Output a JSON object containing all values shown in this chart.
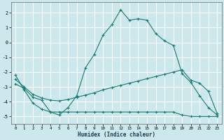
{
  "xlabel": "Humidex (Indice chaleur)",
  "background_color": "#cce8ec",
  "line_color": "#1a7872",
  "grid_color": "#ffffff",
  "xlim": [
    -0.5,
    23.5
  ],
  "ylim": [
    -5.5,
    2.7
  ],
  "yticks": [
    2,
    1,
    0,
    -1,
    -2,
    -3,
    -4,
    -5
  ],
  "xticks": [
    0,
    1,
    2,
    3,
    4,
    5,
    6,
    7,
    8,
    9,
    10,
    11,
    12,
    13,
    14,
    15,
    16,
    17,
    18,
    19,
    20,
    21,
    22,
    23
  ],
  "line1_x": [
    0,
    1,
    2,
    3,
    4,
    5,
    6,
    7,
    8,
    9,
    10,
    11,
    12,
    13,
    14,
    15,
    16,
    17,
    18,
    19,
    20,
    21,
    22,
    23
  ],
  "line1_y": [
    -2.2,
    -3.2,
    -4.1,
    -4.5,
    -4.7,
    -4.9,
    -4.4,
    -3.6,
    -1.7,
    -0.8,
    0.5,
    1.2,
    2.2,
    1.5,
    1.6,
    1.5,
    0.6,
    0.1,
    -0.2,
    -2.1,
    -2.7,
    -3.6,
    -4.4,
    -4.9
  ],
  "line2_x": [
    0,
    1,
    2,
    3,
    4,
    5,
    6,
    7,
    8,
    9,
    10,
    11,
    12,
    13,
    14,
    15,
    16,
    17,
    18,
    19,
    20,
    21,
    22,
    23
  ],
  "line2_y": [
    -2.5,
    -3.0,
    -3.5,
    -3.75,
    -3.9,
    -3.95,
    -3.85,
    -3.7,
    -3.55,
    -3.4,
    -3.2,
    -3.05,
    -2.9,
    -2.75,
    -2.6,
    -2.45,
    -2.3,
    -2.15,
    -2.0,
    -1.85,
    -2.55,
    -2.75,
    -3.3,
    -4.8
  ],
  "line3_x": [
    0,
    1,
    2,
    3,
    4,
    5,
    6,
    7,
    8,
    9,
    10,
    11,
    12,
    13,
    14,
    15,
    16,
    17,
    18,
    19,
    20,
    21,
    22,
    23
  ],
  "line3_y": [
    -2.8,
    -3.1,
    -3.7,
    -3.9,
    -4.7,
    -4.7,
    -4.7,
    -4.7,
    -4.7,
    -4.7,
    -4.7,
    -4.7,
    -4.7,
    -4.7,
    -4.7,
    -4.7,
    -4.7,
    -4.7,
    -4.7,
    -4.9,
    -5.0,
    -5.0,
    -5.0,
    -5.0
  ]
}
